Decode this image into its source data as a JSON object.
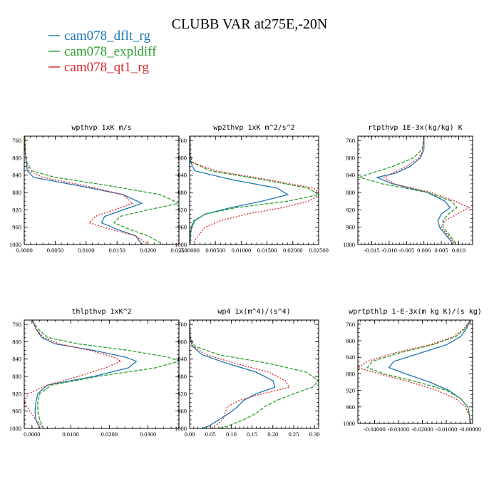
{
  "figure": {
    "title": "CLUBB VAR at275E,-20N"
  },
  "legend": [
    {
      "name": "cam078_dflt_rg",
      "color": "#1f77b4",
      "dash": "solid"
    },
    {
      "name": "cam078_expldiff",
      "color": "#2ca02c",
      "dash": "dash"
    },
    {
      "name": "cam078_qt1_rg",
      "color": "#d62728",
      "dash": "dot"
    }
  ],
  "chart_data": [
    {
      "type": "line",
      "title": "wpthvp  1xK m/s",
      "xlim": [
        0,
        0.025
      ],
      "ylim": [
        1000,
        750
      ],
      "xticks": [
        0,
        0.005,
        0.01,
        0.015,
        0.02,
        0.025
      ],
      "xtick_labels": [
        "0.0000",
        "0.0050",
        "0.0100",
        "0.0150",
        "0.0200",
        "0.0250"
      ],
      "yticks": [
        760,
        800,
        840,
        880,
        920,
        960,
        1000
      ],
      "y": [
        750,
        770,
        790,
        810,
        830,
        845,
        865,
        885,
        905,
        920,
        935,
        950,
        965,
        980,
        1000
      ],
      "series": [
        {
          "name": "cam078_dflt_rg",
          "values": [
            0.0001,
            0.0001,
            0.0002,
            0.0003,
            0.0005,
            0.0015,
            0.009,
            0.016,
            0.019,
            0.016,
            0.013,
            0.0125,
            0.015,
            0.018,
            0.019
          ]
        },
        {
          "name": "cam078_expldiff",
          "values": [
            0.0001,
            0.0001,
            0.0002,
            0.0004,
            0.0012,
            0.005,
            0.014,
            0.022,
            0.025,
            0.02,
            0.0155,
            0.0145,
            0.017,
            0.02,
            0.0225
          ]
        },
        {
          "name": "cam078_qt1_rg",
          "values": [
            0.0001,
            0.0001,
            0.0002,
            0.0003,
            0.0008,
            0.003,
            0.01,
            0.016,
            0.0175,
            0.0145,
            0.0115,
            0.0105,
            0.014,
            0.018,
            0.02
          ]
        }
      ]
    },
    {
      "type": "line",
      "title": "wp2thvp  1xK m^2/s^2",
      "xlim": [
        0,
        0.025
      ],
      "ylim": [
        1000,
        750
      ],
      "xticks": [
        0,
        0.005,
        0.01,
        0.015,
        0.02,
        0.025
      ],
      "xtick_labels": [
        "0.00000",
        "0.00500",
        "0.01000",
        "0.01500",
        "0.02000",
        "0.02500"
      ],
      "yticks": [
        760,
        800,
        840,
        880,
        920,
        960,
        1000
      ],
      "y": [
        750,
        790,
        810,
        830,
        850,
        870,
        885,
        900,
        915,
        930,
        945,
        960,
        975,
        990,
        1000
      ],
      "series": [
        {
          "name": "cam078_dflt_rg",
          "values": [
            0.0001,
            0.0001,
            0.0002,
            0.001,
            0.008,
            0.017,
            0.019,
            0.014,
            0.008,
            0.003,
            0.001,
            0.0004,
            0.0002,
            0.0001,
            0.0001
          ]
        },
        {
          "name": "cam078_expldiff",
          "values": [
            0.0001,
            0.0001,
            0.0004,
            0.004,
            0.014,
            0.023,
            0.025,
            0.019,
            0.009,
            0.003,
            0.0008,
            0.0003,
            0.0002,
            0.0001,
            0.0001
          ]
        },
        {
          "name": "cam078_qt1_rg",
          "values": [
            0.0001,
            0.0001,
            0.0005,
            0.005,
            0.015,
            0.024,
            0.0255,
            0.023,
            0.018,
            0.011,
            0.006,
            0.003,
            0.002,
            0.001,
            0.0008
          ]
        }
      ]
    },
    {
      "type": "line",
      "title": "rtpthvp  1E-3x(kg/kg) K",
      "xlim": [
        -0.019,
        0.014
      ],
      "ylim": [
        1000,
        750
      ],
      "xticks": [
        -0.015,
        -0.01,
        -0.005,
        0,
        0.005,
        0.01
      ],
      "xtick_labels": [
        "-0.015",
        "-0.010",
        "-0.005",
        "0.000",
        "0.005",
        "0.010"
      ],
      "yticks": [
        760,
        800,
        840,
        880,
        920,
        960,
        1000
      ],
      "y": [
        750,
        780,
        800,
        820,
        835,
        845,
        860,
        880,
        900,
        915,
        930,
        945,
        960,
        980,
        1000
      ],
      "series": [
        {
          "name": "cam078_dflt_rg",
          "values": [
            0.0,
            0.0,
            -0.001,
            -0.004,
            -0.008,
            -0.0135,
            -0.009,
            0.001,
            0.006,
            0.0075,
            0.005,
            0.004,
            0.0045,
            0.0065,
            0.0085
          ]
        },
        {
          "name": "cam078_expldiff",
          "values": [
            0.0,
            -0.0005,
            -0.003,
            -0.009,
            -0.015,
            -0.0185,
            -0.012,
            0.001,
            0.008,
            0.0095,
            0.007,
            0.0055,
            0.0055,
            0.0075,
            0.0095
          ]
        },
        {
          "name": "cam078_qt1_rg",
          "values": [
            0.0,
            0.0,
            -0.0015,
            -0.005,
            -0.009,
            -0.0115,
            -0.0085,
            0.002,
            0.009,
            0.013,
            0.0095,
            0.006,
            0.005,
            0.007,
            0.009
          ]
        }
      ]
    },
    {
      "type": "line",
      "title": "thlpthvp  1xK^2",
      "xlim": [
        -0.002,
        0.038
      ],
      "ylim": [
        1000,
        750
      ],
      "xticks": [
        0,
        0.01,
        0.02,
        0.03
      ],
      "xtick_labels": [
        "0.0000",
        "0.0100",
        "0.0200",
        "0.0300"
      ],
      "yticks": [
        760,
        800,
        840,
        880,
        920,
        960,
        1000
      ],
      "y": [
        750,
        770,
        790,
        805,
        820,
        835,
        845,
        860,
        880,
        900,
        920,
        940,
        960,
        980,
        1000
      ],
      "series": [
        {
          "name": "cam078_dflt_rg",
          "values": [
            0.0001,
            0.001,
            0.0025,
            0.006,
            0.016,
            0.024,
            0.027,
            0.025,
            0.016,
            0.004,
            0.0015,
            0.001,
            0.0008,
            0.001,
            0.002
          ]
        },
        {
          "name": "cam078_expldiff",
          "values": [
            0.0001,
            0.0015,
            0.004,
            0.012,
            0.025,
            0.035,
            0.038,
            0.032,
            0.017,
            0.005,
            0.002,
            0.0015,
            0.0015,
            0.002,
            0.003
          ]
        },
        {
          "name": "cam078_qt1_rg",
          "values": [
            0.0001,
            0.001,
            0.003,
            0.007,
            0.015,
            0.021,
            0.023,
            0.019,
            0.012,
            0.004,
            -0.001,
            -0.002,
            -0.0005,
            0.001,
            0.003
          ]
        }
      ]
    },
    {
      "type": "line",
      "title": "wp4  1x(m^4)/(s^4)",
      "xlim": [
        0,
        0.31
      ],
      "ylim": [
        1000,
        750
      ],
      "xticks": [
        0,
        0.05,
        0.1,
        0.15,
        0.2,
        0.25,
        0.3
      ],
      "xtick_labels": [
        "0.00",
        "0.05",
        "0.10",
        "0.15",
        "0.20",
        "0.25",
        "0.30"
      ],
      "yticks": [
        760,
        800,
        840,
        880,
        920,
        960,
        1000
      ],
      "y": [
        750,
        790,
        810,
        830,
        850,
        870,
        890,
        905,
        920,
        935,
        950,
        965,
        980,
        995,
        1000
      ],
      "series": [
        {
          "name": "cam078_dflt_rg",
          "values": [
            0.0,
            0.001,
            0.006,
            0.03,
            0.09,
            0.16,
            0.2,
            0.205,
            0.16,
            0.13,
            0.115,
            0.095,
            0.07,
            0.045,
            0.03
          ]
        },
        {
          "name": "cam078_expldiff",
          "values": [
            0.0,
            0.002,
            0.012,
            0.07,
            0.19,
            0.28,
            0.31,
            0.295,
            0.25,
            0.21,
            0.18,
            0.16,
            0.13,
            0.09,
            0.07
          ]
        },
        {
          "name": "cam078_qt1_rg",
          "values": [
            0.0,
            0.001,
            0.008,
            0.04,
            0.11,
            0.19,
            0.23,
            0.24,
            0.175,
            0.12,
            0.09,
            0.085,
            0.08,
            0.06,
            0.05
          ]
        }
      ]
    },
    {
      "type": "line",
      "title": "wprtpthlp  1-E-3x(m kg K)/(s kg)",
      "xlim": [
        -0.047,
        0.001
      ],
      "ylim": [
        1000,
        750
      ],
      "xticks": [
        -0.04,
        -0.03,
        -0.02,
        -0.01,
        0
      ],
      "xtick_labels": [
        "-0.04000",
        "-0.03000",
        "-0.02000",
        "-0.01000",
        "-0.00000"
      ],
      "yticks": [
        760,
        800,
        840,
        880,
        920,
        960,
        1000
      ],
      "y": [
        750,
        770,
        790,
        810,
        830,
        850,
        865,
        880,
        900,
        920,
        940,
        960,
        980,
        1000
      ],
      "series": [
        {
          "name": "cam078_dflt_rg",
          "values": [
            0.0,
            -0.0015,
            -0.004,
            -0.01,
            -0.021,
            -0.032,
            -0.034,
            -0.027,
            -0.017,
            -0.009,
            -0.004,
            -0.001,
            -0.0003,
            0.0
          ]
        },
        {
          "name": "cam078_expldiff",
          "values": [
            0.0,
            -0.002,
            -0.006,
            -0.016,
            -0.03,
            -0.041,
            -0.043,
            -0.036,
            -0.022,
            -0.01,
            -0.004,
            -0.001,
            -0.0003,
            0.0
          ]
        },
        {
          "name": "cam078_qt1_rg",
          "values": [
            0.0,
            -0.0025,
            -0.007,
            -0.017,
            -0.032,
            -0.043,
            -0.047,
            -0.038,
            -0.025,
            -0.014,
            -0.006,
            -0.002,
            -0.0005,
            0.0
          ]
        }
      ]
    }
  ]
}
